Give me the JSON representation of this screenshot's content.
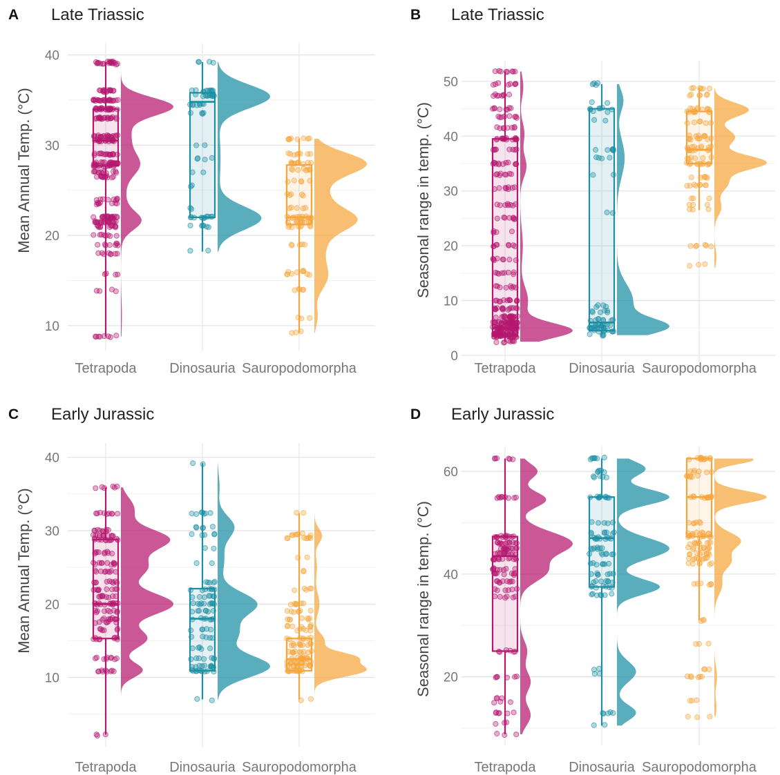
{
  "chart_data": [
    {
      "panel": "A",
      "type": "raincloud",
      "title": "Late Triassic",
      "ylabel": "Mean Annual Temp. (°C)",
      "ylim": [
        8,
        40.5
      ],
      "yticks": [
        10,
        20,
        30,
        40
      ],
      "categories": [
        "Tetrapoda",
        "Dinosauria",
        "Sauropodomorpha"
      ],
      "colors": [
        "#b5176f",
        "#1b8ea3",
        "#f5a53c"
      ],
      "boxes": [
        {
          "min": 8.8,
          "q1": 27.7,
          "median": 30.5,
          "q3": 34.0,
          "max": 39.2
        },
        {
          "min": 18.2,
          "q1": 22.0,
          "median": 34.8,
          "q3": 35.8,
          "max": 39.2
        },
        {
          "min": 9.2,
          "q1": 21.2,
          "median": 22.0,
          "q3": 27.8,
          "max": 30.7
        }
      ],
      "density": [
        {
          "lo": 8.8,
          "hi": 39.2,
          "peaks": [
            [
              34.3,
              1.0,
              1.0
            ],
            [
              27.8,
              0.3,
              1.2
            ],
            [
              21.6,
              0.35,
              1.0
            ],
            [
              31,
              0.2,
              2.0
            ],
            [
              24,
              0.1,
              2.5
            ],
            [
              11,
              0.02,
              2.0
            ]
          ]
        },
        {
          "lo": 18.2,
          "hi": 39.2,
          "peaks": [
            [
              35.4,
              0.9,
              1.3
            ],
            [
              21.9,
              0.75,
              1.3
            ],
            [
              28.5,
              0.05,
              3.0
            ]
          ]
        },
        {
          "lo": 9.2,
          "hi": 30.7,
          "peaks": [
            [
              28.0,
              0.75,
              1.2
            ],
            [
              21.7,
              0.55,
              1.2
            ],
            [
              15.5,
              0.2,
              1.5
            ],
            [
              24.5,
              0.2,
              2.0
            ],
            [
              19,
              0.15,
              1.5
            ],
            [
              11,
              0.05,
              1.0
            ]
          ]
        }
      ],
      "points": [
        {
          "n": 320,
          "values": [
            39.2,
            39.0,
            36.0,
            35.0,
            34.0,
            33.0,
            31.0,
            30.5,
            29.0,
            28.0,
            27.7,
            27.0,
            26.5,
            24.0,
            23.5,
            22.0,
            21.5,
            21.0,
            20.0,
            19.0,
            18.0,
            15.7,
            13.9,
            8.8
          ],
          "weights": [
            3,
            2,
            4,
            6,
            6,
            5,
            5,
            4,
            4,
            5,
            4,
            3,
            3,
            2,
            2,
            5,
            5,
            3,
            2,
            2,
            2,
            1,
            1,
            2
          ]
        },
        {
          "n": 70,
          "values": [
            39.2,
            36.0,
            35.5,
            34.5,
            33.5,
            30.0,
            28.5,
            27.0,
            25.5,
            23.0,
            22.0,
            21.0,
            18.2
          ],
          "weights": [
            2,
            5,
            5,
            4,
            2,
            1,
            2,
            1,
            1,
            1,
            5,
            3,
            1
          ]
        },
        {
          "n": 110,
          "values": [
            30.7,
            29.0,
            28.0,
            27.3,
            26.0,
            24.5,
            23.0,
            22.0,
            21.5,
            21.0,
            19.0,
            16.0,
            15.7,
            14.0,
            10.8,
            9.3
          ],
          "weights": [
            3,
            3,
            4,
            3,
            2,
            2,
            2,
            5,
            4,
            3,
            2,
            2,
            2,
            2,
            1,
            1
          ]
        }
      ]
    },
    {
      "panel": "B",
      "type": "raincloud",
      "title": "Late Triassic",
      "ylabel": "Seasonal range in temp. (°C)",
      "ylim": [
        0,
        52.5
      ],
      "yticks": [
        0,
        10,
        20,
        30,
        40,
        50
      ],
      "categories": [
        "Tetrapoda",
        "Dinosauria",
        "Sauropodomorpha"
      ],
      "colors": [
        "#b5176f",
        "#1b8ea3",
        "#f5a53c"
      ],
      "boxes": [
        {
          "min": 2.5,
          "q1": 3.5,
          "median": 5.0,
          "q3": 39.5,
          "max": 51.8
        },
        {
          "min": 3.7,
          "q1": 4.5,
          "median": 6.0,
          "q3": 45.0,
          "max": 49.5
        },
        {
          "min": 26.5,
          "q1": 35.0,
          "median": 37.5,
          "q3": 44.5,
          "max": 48.8
        }
      ],
      "density": [
        {
          "lo": 2.5,
          "hi": 51.8,
          "peaks": [
            [
              4.5,
              1.0,
              1.4
            ],
            [
              10,
              0.15,
              2.5
            ],
            [
              20,
              0.05,
              3.0
            ],
            [
              34.5,
              0.12,
              2.0
            ],
            [
              40.5,
              0.08,
              2.0
            ],
            [
              49,
              0.06,
              2.0
            ]
          ]
        },
        {
          "lo": 3.7,
          "hi": 49.5,
          "peaks": [
            [
              5.2,
              0.75,
              1.5
            ],
            [
              10,
              0.25,
              3.0
            ],
            [
              36,
              0.12,
              3.5
            ],
            [
              46.5,
              0.1,
              2.0
            ]
          ]
        },
        {
          "lo": 16.0,
          "hi": 48.8,
          "peaks": [
            [
              35.2,
              0.75,
              1.3
            ],
            [
              44.8,
              0.5,
              1.3
            ],
            [
              39.8,
              0.3,
              1.5
            ],
            [
              31.5,
              0.2,
              1.5
            ],
            [
              27,
              0.1,
              1.5
            ],
            [
              18,
              0.03,
              1.5
            ]
          ]
        }
      ],
      "points": [
        {
          "n": 320,
          "values": [
            51.8,
            49.5,
            47.5,
            45.0,
            43.5,
            41.5,
            39.5,
            37.5,
            35.0,
            33.0,
            30.5,
            27.5,
            25.0,
            22.5,
            20.0,
            17.5,
            15.0,
            12.5,
            10.0,
            8.5,
            7.0,
            6.0,
            5.0,
            4.0,
            3.5,
            2.5
          ],
          "weights": [
            2,
            2,
            2,
            2,
            2,
            2,
            4,
            2,
            3,
            2,
            2,
            2,
            2,
            1,
            2,
            2,
            2,
            2,
            3,
            4,
            5,
            8,
            9,
            8,
            6,
            2
          ]
        },
        {
          "n": 80,
          "values": [
            49.5,
            46.0,
            45.0,
            44.5,
            43.0,
            37.5,
            36.0,
            33.0,
            26.0,
            9.0,
            8.0,
            6.5,
            5.5,
            5.0,
            4.5,
            3.7
          ],
          "weights": [
            2,
            1,
            3,
            1,
            1,
            3,
            2,
            1,
            1,
            2,
            3,
            4,
            5,
            5,
            4,
            2
          ]
        },
        {
          "n": 110,
          "values": [
            48.8,
            47.5,
            45.0,
            44.5,
            42.5,
            40.0,
            39.5,
            38.0,
            37.5,
            36.0,
            35.0,
            32.5,
            31.0,
            28.5,
            27.5,
            26.5,
            20.0,
            16.5
          ],
          "weights": [
            2,
            2,
            3,
            3,
            2,
            2,
            3,
            3,
            3,
            2,
            4,
            2,
            3,
            1,
            1,
            1,
            2,
            1
          ]
        }
      ]
    },
    {
      "panel": "C",
      "type": "raincloud",
      "title": "Early Jurassic",
      "ylabel": "Mean Annual Temp. (°C)",
      "ylim": [
        1.5,
        41
      ],
      "yticks": [
        10,
        20,
        30,
        40
      ],
      "categories": [
        "Tetrapoda",
        "Dinosauria",
        "Sauropodomorpha"
      ],
      "colors": [
        "#b5176f",
        "#1b8ea3",
        "#f5a53c"
      ],
      "boxes": [
        {
          "min": 2.2,
          "q1": 15.3,
          "median": 20.0,
          "q3": 28.8,
          "max": 35.9
        },
        {
          "min": 7.0,
          "q1": 10.9,
          "median": 18.0,
          "q3": 22.1,
          "max": 39.2
        },
        {
          "min": 7.0,
          "q1": 10.9,
          "median": 12.5,
          "q3": 15.3,
          "max": 32.4
        }
      ],
      "density": [
        {
          "lo": 2.2,
          "hi": 35.9,
          "peaks": [
            [
              20.0,
              0.6,
              1.5
            ],
            [
              28.8,
              0.55,
              1.4
            ],
            [
              25,
              0.3,
              1.5
            ],
            [
              15.3,
              0.3,
              1.3
            ],
            [
              11,
              0.25,
              1.0
            ],
            [
              33,
              0.15,
              1.5
            ]
          ]
        },
        {
          "lo": 7.0,
          "hi": 39.2,
          "peaks": [
            [
              11.5,
              0.8,
              1.5
            ],
            [
              20.0,
              0.6,
              1.6
            ],
            [
              16,
              0.3,
              1.5
            ],
            [
              30.5,
              0.25,
              1.5
            ],
            [
              26,
              0.1,
              2.0
            ],
            [
              36,
              0.03,
              1.5
            ]
          ]
        },
        {
          "lo": 7.0,
          "hi": 32.4,
          "peaks": [
            [
              11.0,
              1.0,
              0.9
            ],
            [
              12.8,
              0.7,
              0.7
            ],
            [
              15,
              0.2,
              1.0
            ],
            [
              20,
              0.1,
              1.5
            ],
            [
              29.3,
              0.15,
              1.0
            ],
            [
              25,
              0.05,
              1.5
            ]
          ]
        }
      ],
      "points": [
        {
          "n": 170,
          "values": [
            35.9,
            32.4,
            30.0,
            29.4,
            28.8,
            27.0,
            25.5,
            24.5,
            23.0,
            22.0,
            21.0,
            20.0,
            19.0,
            18.0,
            17.5,
            16.5,
            15.3,
            12.6,
            10.9,
            2.2
          ],
          "weights": [
            2,
            3,
            3,
            4,
            4,
            3,
            4,
            3,
            3,
            3,
            3,
            5,
            3,
            3,
            2,
            2,
            3,
            3,
            3,
            1
          ]
        },
        {
          "n": 110,
          "values": [
            39.2,
            32.4,
            30.5,
            29.5,
            27.5,
            25.5,
            23.0,
            22.0,
            21.0,
            20.0,
            19.0,
            18.0,
            16.5,
            15.5,
            14.0,
            12.6,
            11.5,
            10.9,
            7.0
          ],
          "weights": [
            1,
            3,
            2,
            2,
            1,
            1,
            2,
            3,
            3,
            4,
            3,
            3,
            2,
            2,
            2,
            3,
            4,
            4,
            1
          ]
        },
        {
          "n": 140,
          "values": [
            32.4,
            29.5,
            29.0,
            26.3,
            24.5,
            22.0,
            20.0,
            19.0,
            18.0,
            17.0,
            16.5,
            15.3,
            14.5,
            13.5,
            12.6,
            12.0,
            11.5,
            10.9,
            7.0
          ],
          "weights": [
            1,
            3,
            3,
            1,
            1,
            2,
            3,
            3,
            3,
            3,
            2,
            3,
            4,
            4,
            5,
            5,
            5,
            5,
            1
          ]
        }
      ]
    },
    {
      "panel": "D",
      "type": "raincloud",
      "title": "Early Jurassic",
      "ylabel": "Seasonal range in temp. (°C)",
      "ylim": [
        8,
        63.5
      ],
      "yticks": [
        20,
        40,
        60
      ],
      "categories": [
        "Tetrapoda",
        "Dinosauria",
        "Sauropodomorpha"
      ],
      "colors": [
        "#b5176f",
        "#1b8ea3",
        "#f5a53c"
      ],
      "boxes": [
        {
          "min": 8.8,
          "q1": 25.0,
          "median": 43.5,
          "q3": 47.3,
          "max": 62.5
        },
        {
          "min": 10.5,
          "q1": 37.5,
          "median": 47.0,
          "q3": 55.0,
          "max": 62.5
        },
        {
          "min": 31.0,
          "q1": 47.3,
          "median": 55.0,
          "q3": 62.5,
          "max": 62.5
        }
      ],
      "density": [
        {
          "lo": 8.8,
          "hi": 62.5,
          "peaks": [
            [
              46.0,
              0.6,
              2.2
            ],
            [
              40.5,
              0.3,
              2.0
            ],
            [
              54.5,
              0.3,
              1.5
            ],
            [
              60,
              0.2,
              1.5
            ],
            [
              25,
              0.08,
              2.0
            ],
            [
              19,
              0.12,
              2.0
            ],
            [
              12.5,
              0.12,
              2.0
            ]
          ]
        },
        {
          "lo": 10.5,
          "hi": 62.5,
          "peaks": [
            [
              55.0,
              0.55,
              1.5
            ],
            [
              45.0,
              0.55,
              2.0
            ],
            [
              37.5,
              0.45,
              1.5
            ],
            [
              60.5,
              0.3,
              1.5
            ],
            [
              21,
              0.2,
              2.0
            ],
            [
              13,
              0.2,
              1.5
            ]
          ]
        },
        {
          "lo": 12.3,
          "hi": 62.5,
          "peaks": [
            [
              55.0,
              1.0,
              1.2
            ],
            [
              62.3,
              0.75,
              0.9
            ],
            [
              46.5,
              0.5,
              1.6
            ],
            [
              42.5,
              0.3,
              1.5
            ],
            [
              38,
              0.15,
              2.0
            ],
            [
              20,
              0.05,
              2.0
            ],
            [
              14,
              0.04,
              1.5
            ]
          ]
        }
      ],
      "points": [
        {
          "n": 150,
          "values": [
            62.5,
            55.0,
            47.3,
            46.0,
            45.0,
            44.0,
            43.0,
            41.0,
            40.0,
            38.5,
            37.0,
            35.5,
            25.0,
            20.0,
            16.0,
            15.0,
            13.0,
            11.0,
            8.8
          ],
          "weights": [
            2,
            3,
            4,
            4,
            4,
            4,
            4,
            3,
            3,
            3,
            2,
            2,
            2,
            2,
            1,
            1,
            2,
            1,
            1
          ]
        },
        {
          "n": 110,
          "values": [
            62.5,
            60.0,
            59.0,
            55.0,
            50.0,
            48.0,
            47.0,
            45.0,
            44.0,
            42.0,
            40.0,
            38.5,
            37.5,
            36.0,
            21.5,
            20.5,
            13.0,
            10.5
          ],
          "weights": [
            3,
            2,
            2,
            4,
            2,
            3,
            4,
            3,
            3,
            3,
            3,
            3,
            3,
            3,
            1,
            1,
            2,
            1
          ]
        },
        {
          "n": 130,
          "values": [
            62.5,
            60.0,
            59.0,
            55.0,
            50.0,
            48.0,
            47.3,
            46.0,
            45.0,
            44.0,
            43.0,
            42.0,
            38.0,
            31.0,
            26.5,
            21.5,
            20.0,
            15.5,
            12.3
          ],
          "weights": [
            4,
            2,
            2,
            4,
            2,
            3,
            3,
            3,
            3,
            3,
            3,
            2,
            2,
            1,
            1,
            1,
            2,
            1,
            1
          ]
        }
      ]
    }
  ]
}
